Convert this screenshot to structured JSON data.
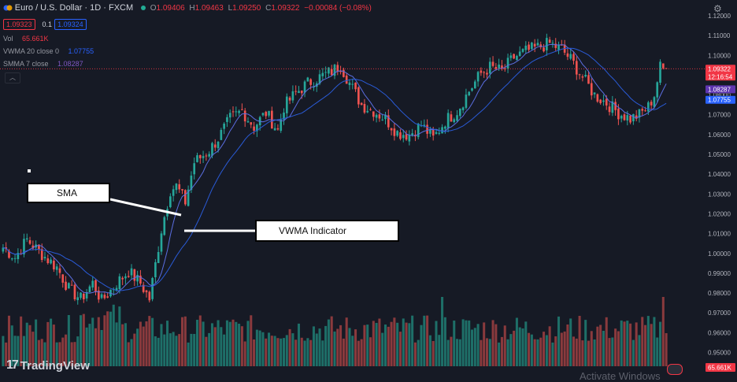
{
  "header": {
    "symbol": "Euro / U.S. Dollar · 1D · FXCM",
    "open_key": "O",
    "open": "1.09406",
    "high_key": "H",
    "high": "1.09463",
    "low_key": "L",
    "low": "1.09250",
    "close_key": "C",
    "close": "1.09322",
    "change": "−0.00084 (−0.08%)",
    "bid": "1.09323",
    "spread": "0.1",
    "ask": "1.09324"
  },
  "indicators": {
    "vol_label": "Vol",
    "vol_value": "65.661K",
    "vwma_label": "VWMA 20 close 0",
    "vwma_value": "1.07755",
    "smma_label": "SMMA 7 close",
    "smma_value": "1.08287"
  },
  "annotations": {
    "sma": "SMA",
    "vwma": "VWMA Indicator"
  },
  "branding": {
    "logo_text": "TradingView",
    "logo_mark": "17"
  },
  "watermark": "Activate Windows",
  "colors": {
    "up": "#26a69a",
    "down": "#ef5350",
    "vol_up": "#1e6f68",
    "vol_down": "#8a3a3d",
    "smma": "#5b6ee1",
    "vwma": "#2a5bd7",
    "price_line": "#f23645"
  },
  "chart_data": {
    "type": "candlestick",
    "y_axis_ticks": [
      1.12,
      1.11,
      1.1,
      1.09,
      1.08,
      1.07,
      1.06,
      1.05,
      1.04,
      1.03,
      1.02,
      1.01,
      1.0,
      0.99,
      0.98,
      0.97,
      0.96,
      0.95
    ],
    "y_axis_labels": [
      "1.12000",
      "1.11000",
      "1.10000",
      "1.09000",
      "1.08000",
      "1.07000",
      "1.06000",
      "1.05000",
      "1.04000",
      "1.03000",
      "1.02000",
      "1.01000",
      "1.00000",
      "0.99000",
      "0.98000",
      "0.97000",
      "0.96000",
      "0.95000"
    ],
    "ylim": [
      0.944,
      1.122
    ],
    "price_labels": {
      "last": "1.09322",
      "last_value": 1.09322,
      "countdown": "12:16:54",
      "smma": "1.08287",
      "smma_value": 1.08287,
      "vwma": "1.07755",
      "vwma_value": 1.07755,
      "volume": "65.661K"
    },
    "anchors": [
      [
        0,
        1.003
      ],
      [
        4,
        0.998
      ],
      [
        8,
        1.007
      ],
      [
        12,
        1.001
      ],
      [
        18,
        0.993
      ],
      [
        22,
        0.982
      ],
      [
        26,
        0.977
      ],
      [
        30,
        0.985
      ],
      [
        33,
        0.976
      ],
      [
        38,
        0.985
      ],
      [
        42,
        0.991
      ],
      [
        46,
        0.985
      ],
      [
        49,
        0.977
      ],
      [
        53,
        1.012
      ],
      [
        56,
        1.032
      ],
      [
        58,
        1.034
      ],
      [
        61,
        1.026
      ],
      [
        64,
        1.046
      ],
      [
        69,
        1.052
      ],
      [
        72,
        1.058
      ],
      [
        76,
        1.068
      ],
      [
        80,
        1.072
      ],
      [
        84,
        1.064
      ],
      [
        88,
        1.071
      ],
      [
        92,
        1.062
      ],
      [
        94,
        1.074
      ],
      [
        98,
        1.081
      ],
      [
        102,
        1.086
      ],
      [
        106,
        1.089
      ],
      [
        110,
        1.092
      ],
      [
        113,
        1.095
      ],
      [
        116,
        1.086
      ],
      [
        120,
        1.075
      ],
      [
        124,
        1.072
      ],
      [
        128,
        1.068
      ],
      [
        132,
        1.061
      ],
      [
        136,
        1.06
      ],
      [
        140,
        1.065
      ],
      [
        144,
        1.058
      ],
      [
        148,
        1.067
      ],
      [
        152,
        1.072
      ],
      [
        156,
        1.082
      ],
      [
        160,
        1.091
      ],
      [
        163,
        1.094
      ],
      [
        167,
        1.092
      ],
      [
        171,
        1.099
      ],
      [
        175,
        1.102
      ],
      [
        179,
        1.104
      ],
      [
        183,
        1.106
      ],
      [
        187,
        1.103
      ],
      [
        190,
        1.098
      ],
      [
        194,
        1.089
      ],
      [
        198,
        1.08
      ],
      [
        202,
        1.076
      ],
      [
        206,
        1.071
      ],
      [
        210,
        1.068
      ],
      [
        213,
        1.07
      ],
      [
        216,
        1.074
      ],
      [
        218,
        1.08
      ],
      [
        220,
        1.094
      ],
      [
        222,
        1.093
      ]
    ],
    "candle_count": 223,
    "series": [
      {
        "name": "SMMA 7 close",
        "kind": "line"
      },
      {
        "name": "VWMA 20 close 0",
        "kind": "line"
      },
      {
        "name": "Vol",
        "kind": "volume-bars"
      }
    ],
    "grid": false
  }
}
